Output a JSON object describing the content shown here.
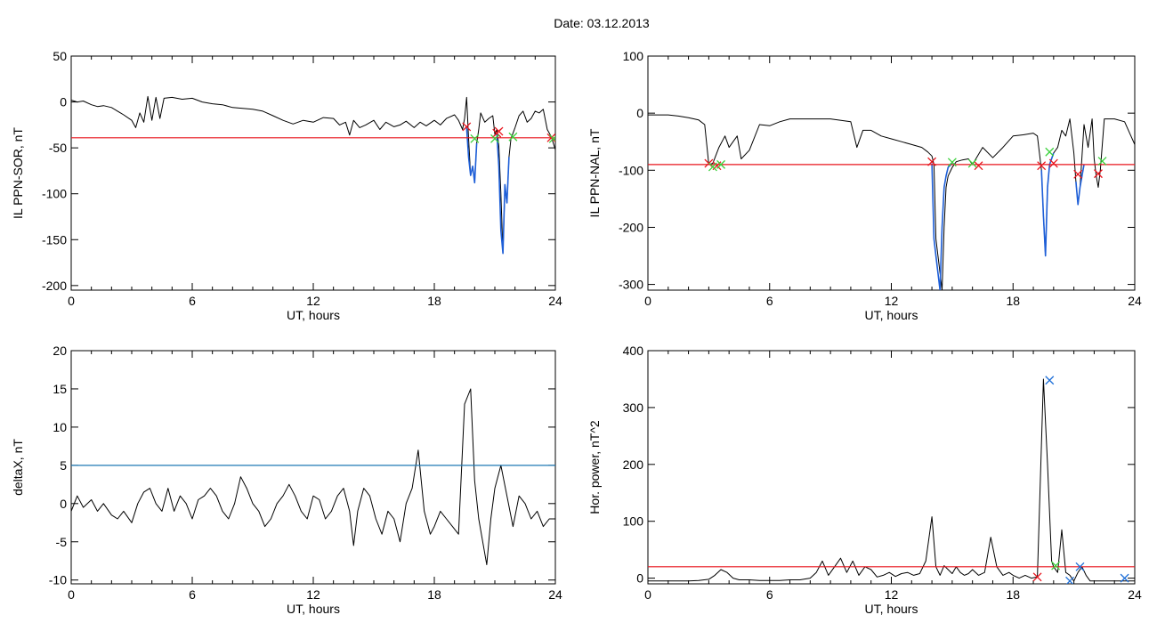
{
  "title": "Date:  03.12.2013",
  "chart_data": [
    {
      "type": "line",
      "id": "p1",
      "xlabel": "UT, hours",
      "ylabel": "IL PPN-SOR, nT",
      "xlim": [
        0,
        24
      ],
      "ylim": [
        -205,
        50
      ],
      "xticks": [
        0,
        6,
        12,
        18,
        24
      ],
      "yticks": [
        50,
        0,
        -50,
        -100,
        -150,
        -200
      ],
      "threshold": {
        "value": -39,
        "color": "#e8141c"
      },
      "series": [
        {
          "color": "#000000",
          "x": [
            0,
            0.3,
            0.6,
            1,
            1.3,
            1.6,
            2,
            2.3,
            2.6,
            3,
            3.2,
            3.4,
            3.6,
            3.8,
            4,
            4.2,
            4.4,
            4.6,
            5,
            5.5,
            6,
            6.5,
            7,
            7.5,
            8,
            8.5,
            9,
            9.5,
            10,
            10.5,
            11,
            11.5,
            12,
            12.5,
            13,
            13.3,
            13.6,
            13.8,
            14,
            14.3,
            14.6,
            15,
            15.3,
            15.6,
            16,
            16.3,
            16.6,
            17,
            17.3,
            17.6,
            18,
            18.3,
            18.6,
            19,
            19.2,
            19.4,
            19.5,
            19.6,
            19.7,
            19.8,
            19.9,
            20,
            20.1,
            20.2,
            20.3,
            20.5,
            20.7,
            20.9,
            21,
            21.1,
            21.2,
            21.3,
            21.4,
            21.5,
            21.6,
            21.7,
            21.8,
            22,
            22.2,
            22.4,
            22.6,
            22.8,
            23,
            23.2,
            23.4,
            23.6,
            23.8,
            24
          ],
          "y": [
            2,
            0,
            1,
            -3,
            -5,
            -4,
            -6,
            -10,
            -14,
            -20,
            -28,
            -12,
            -22,
            6,
            -20,
            5,
            -18,
            4,
            5,
            3,
            4,
            0,
            -2,
            -3,
            -6,
            -7,
            -8,
            -10,
            -15,
            -20,
            -24,
            -20,
            -22,
            -17,
            -18,
            -25,
            -22,
            -36,
            -20,
            -28,
            -25,
            -20,
            -30,
            -22,
            -27,
            -25,
            -21,
            -28,
            -22,
            -26,
            -20,
            -25,
            -18,
            -14,
            -20,
            -30,
            -18,
            5,
            -40,
            -80,
            -70,
            -88,
            -45,
            -30,
            -12,
            -22,
            -18,
            -15,
            -35,
            -30,
            -48,
            -100,
            -165,
            -95,
            -110,
            -60,
            -40,
            -28,
            -15,
            -10,
            -22,
            -18,
            -10,
            -12,
            -8,
            -30,
            -38,
            -52
          ]
        },
        {
          "color": "#1e5fd8",
          "x": [
            19.6,
            19.7,
            19.8,
            19.9,
            20,
            20.1
          ],
          "y": [
            -28,
            -60,
            -80,
            -70,
            -88,
            -45
          ]
        },
        {
          "color": "#1e5fd8",
          "x": [
            21.1,
            21.2,
            21.3,
            21.4,
            21.5,
            21.6,
            21.7
          ],
          "y": [
            -35,
            -70,
            -140,
            -165,
            -90,
            -110,
            -60
          ]
        }
      ],
      "markers_red": {
        "x": [
          19.6,
          21.1,
          21.2,
          23.8
        ],
        "y": [
          -27,
          -34,
          -32,
          -39
        ]
      },
      "markers_green": {
        "x": [
          20.0,
          21.0,
          21.9,
          23.9
        ],
        "y": [
          -40,
          -40,
          -38,
          -40
        ]
      }
    },
    {
      "type": "line",
      "id": "p2",
      "xlabel": "UT, hours",
      "ylabel": "IL PPN-NAL, nT",
      "xlim": [
        0,
        24
      ],
      "ylim": [
        -310,
        100
      ],
      "xticks": [
        0,
        6,
        12,
        18,
        24
      ],
      "yticks": [
        100,
        0,
        -100,
        -200,
        -300
      ],
      "threshold": {
        "value": -90,
        "color": "#e8141c"
      },
      "series": [
        {
          "color": "#000000",
          "x": [
            0,
            0.5,
            1,
            1.5,
            2,
            2.5,
            2.8,
            3,
            3.2,
            3.5,
            3.8,
            4,
            4.2,
            4.4,
            4.6,
            5,
            5.5,
            6,
            6.5,
            7,
            8,
            9,
            10,
            10.3,
            10.6,
            11,
            11.5,
            12,
            12.5,
            13,
            13.5,
            13.8,
            14,
            14.1,
            14.2,
            14.3,
            14.4,
            14.5,
            14.6,
            14.7,
            14.8,
            15,
            15.2,
            15.5,
            15.8,
            16,
            16.5,
            17,
            17.5,
            18,
            18.5,
            19,
            19.2,
            19.4,
            19.5,
            19.6,
            19.7,
            19.8,
            20,
            20.2,
            20.4,
            20.6,
            20.8,
            21,
            21.1,
            21.2,
            21.3,
            21.5,
            21.7,
            21.9,
            22,
            22.1,
            22.2,
            22.3,
            22.5,
            23,
            23.5,
            24
          ],
          "y": [
            -3,
            -3,
            -3,
            -5,
            -8,
            -12,
            -20,
            -90,
            -88,
            -60,
            -40,
            -60,
            -50,
            -40,
            -80,
            -65,
            -20,
            -22,
            -15,
            -10,
            -10,
            -10,
            -15,
            -60,
            -30,
            -30,
            -40,
            -45,
            -50,
            -55,
            -60,
            -68,
            -75,
            -90,
            -220,
            -250,
            -280,
            -310,
            -200,
            -130,
            -110,
            -95,
            -85,
            -82,
            -80,
            -90,
            -60,
            -78,
            -60,
            -40,
            -38,
            -35,
            -40,
            -100,
            -180,
            -250,
            -130,
            -90,
            -70,
            -60,
            -30,
            -40,
            -10,
            -70,
            -120,
            -160,
            -130,
            -20,
            -60,
            -10,
            -80,
            -110,
            -130,
            -100,
            -10,
            -10,
            -15,
            -55
          ]
        },
        {
          "color": "#1e5fd8",
          "x": [
            14,
            14.1,
            14.2,
            14.3,
            14.4,
            14.5,
            14.6,
            14.7,
            14.8,
            15
          ],
          "y": [
            -88,
            -220,
            -250,
            -280,
            -310,
            -200,
            -130,
            -110,
            -95,
            -88
          ]
        },
        {
          "color": "#1e5fd8",
          "x": [
            19.4,
            19.5,
            19.6,
            19.7,
            19.8,
            20
          ],
          "y": [
            -100,
            -180,
            -250,
            -130,
            -90,
            -70
          ]
        },
        {
          "color": "#1e5fd8",
          "x": [
            21.1,
            21.2,
            21.3,
            21.5
          ],
          "y": [
            -120,
            -160,
            -130,
            -90
          ]
        }
      ],
      "markers_red": {
        "x": [
          3.0,
          3.4,
          14.0,
          16.3,
          19.4,
          20.0,
          21.2,
          22.2
        ],
        "y": [
          -88,
          -92,
          -85,
          -92,
          -92,
          -88,
          -107,
          -106
        ]
      },
      "markers_green": {
        "x": [
          3.2,
          3.6,
          15.0,
          16.0,
          19.8,
          22.4
        ],
        "y": [
          -94,
          -90,
          -86,
          -88,
          -68,
          -84
        ]
      }
    },
    {
      "type": "line",
      "id": "p3",
      "xlabel": "UT, hours",
      "ylabel": "deltaX, nT",
      "xlim": [
        0,
        24
      ],
      "ylim": [
        -10.5,
        20
      ],
      "xticks": [
        0,
        6,
        12,
        18,
        24
      ],
      "yticks": [
        20,
        15,
        10,
        5,
        0,
        -5,
        -10
      ],
      "threshold": {
        "value": 5,
        "color": "#1e78b4"
      },
      "series": [
        {
          "color": "#000000",
          "x": [
            0,
            0.3,
            0.6,
            1,
            1.3,
            1.6,
            2,
            2.3,
            2.6,
            3,
            3.3,
            3.6,
            3.9,
            4.2,
            4.5,
            4.8,
            5.1,
            5.4,
            5.7,
            6,
            6.3,
            6.6,
            6.9,
            7.2,
            7.5,
            7.8,
            8.1,
            8.4,
            8.7,
            9,
            9.3,
            9.6,
            9.9,
            10.2,
            10.5,
            10.8,
            11.1,
            11.4,
            11.7,
            12,
            12.3,
            12.6,
            12.9,
            13.2,
            13.5,
            13.8,
            14,
            14.2,
            14.5,
            14.8,
            15.1,
            15.4,
            15.7,
            16,
            16.3,
            16.6,
            16.9,
            17.2,
            17.5,
            17.8,
            18,
            18.3,
            18.6,
            18.9,
            19.2,
            19.5,
            19.8,
            20,
            20.2,
            20.4,
            20.6,
            20.8,
            21,
            21.3,
            21.6,
            21.9,
            22.2,
            22.5,
            22.8,
            23.1,
            23.4,
            23.7,
            24
          ],
          "y": [
            -1,
            1,
            -0.5,
            0.5,
            -1,
            0,
            -1.5,
            -2,
            -1,
            -2.5,
            0,
            1.5,
            2,
            0,
            -1,
            2,
            -1,
            1,
            0,
            -2,
            0.5,
            1,
            2,
            1,
            -1,
            -2,
            0,
            3.5,
            2,
            0,
            -1,
            -3,
            -2,
            0,
            1,
            2.5,
            1,
            -1,
            -2,
            1,
            0.5,
            -2,
            -1,
            1,
            2,
            -1,
            -5.5,
            -1,
            2,
            1,
            -2,
            -4,
            -1,
            -2,
            -5,
            0,
            2,
            7,
            -1,
            -4,
            -3,
            -1,
            -2,
            -3,
            -4,
            13,
            15,
            3,
            -2,
            -5,
            -8,
            -2,
            2,
            5,
            1,
            -3,
            1,
            0,
            -2,
            -1,
            -3,
            -2,
            -2
          ]
        }
      ]
    },
    {
      "type": "line",
      "id": "p4",
      "xlabel": "UT, hours",
      "ylabel": "Hor. power, nT^2",
      "xlim": [
        0,
        24
      ],
      "ylim": [
        -10,
        400
      ],
      "xticks": [
        0,
        6,
        12,
        18,
        24
      ],
      "yticks": [
        400,
        300,
        200,
        100,
        0
      ],
      "threshold": {
        "value": 20,
        "color": "#e8141c"
      },
      "series": [
        {
          "color": "#000000",
          "x": [
            0,
            0.5,
            1,
            1.5,
            2,
            2.5,
            3,
            3.3,
            3.6,
            3.9,
            4.2,
            4.5,
            5,
            5.5,
            6,
            6.5,
            7,
            7.5,
            8,
            8.3,
            8.6,
            8.9,
            9.2,
            9.5,
            9.8,
            10.1,
            10.4,
            10.7,
            11,
            11.3,
            11.6,
            11.9,
            12.2,
            12.5,
            12.8,
            13.1,
            13.4,
            13.7,
            14,
            14.2,
            14.4,
            14.6,
            14.8,
            15,
            15.2,
            15.4,
            15.6,
            15.8,
            16,
            16.3,
            16.6,
            16.9,
            17.2,
            17.5,
            17.8,
            18,
            18.3,
            18.6,
            18.9,
            19.2,
            19.5,
            19.7,
            19.9,
            20,
            20.2,
            20.4,
            20.6,
            20.8,
            21,
            21.2,
            21.4,
            21.6,
            21.8,
            22,
            22.5,
            23,
            23.5,
            24
          ],
          "y": [
            -5,
            -5,
            -5,
            -5,
            -5,
            -4,
            -2,
            5,
            15,
            10,
            0,
            -3,
            -3,
            -4,
            -4,
            -4,
            -3,
            -3,
            0,
            10,
            30,
            5,
            20,
            35,
            10,
            30,
            5,
            20,
            15,
            2,
            5,
            10,
            3,
            8,
            10,
            5,
            8,
            30,
            108,
            20,
            5,
            22,
            15,
            8,
            20,
            10,
            5,
            8,
            15,
            5,
            10,
            72,
            20,
            5,
            10,
            5,
            0,
            5,
            0,
            2,
            350,
            200,
            30,
            20,
            10,
            85,
            10,
            5,
            -5,
            10,
            20,
            5,
            -5,
            -5,
            -5,
            -5,
            -5,
            -5
          ]
        }
      ],
      "markers_red": {
        "x": [
          19.2
        ],
        "y": [
          2
        ]
      },
      "markers_green": {
        "x": [
          20.1
        ],
        "y": [
          22
        ]
      },
      "markers_blue": {
        "x": [
          19.8,
          21.3,
          20.8,
          23.5
        ],
        "y": [
          348,
          20,
          -5,
          0
        ]
      }
    }
  ]
}
